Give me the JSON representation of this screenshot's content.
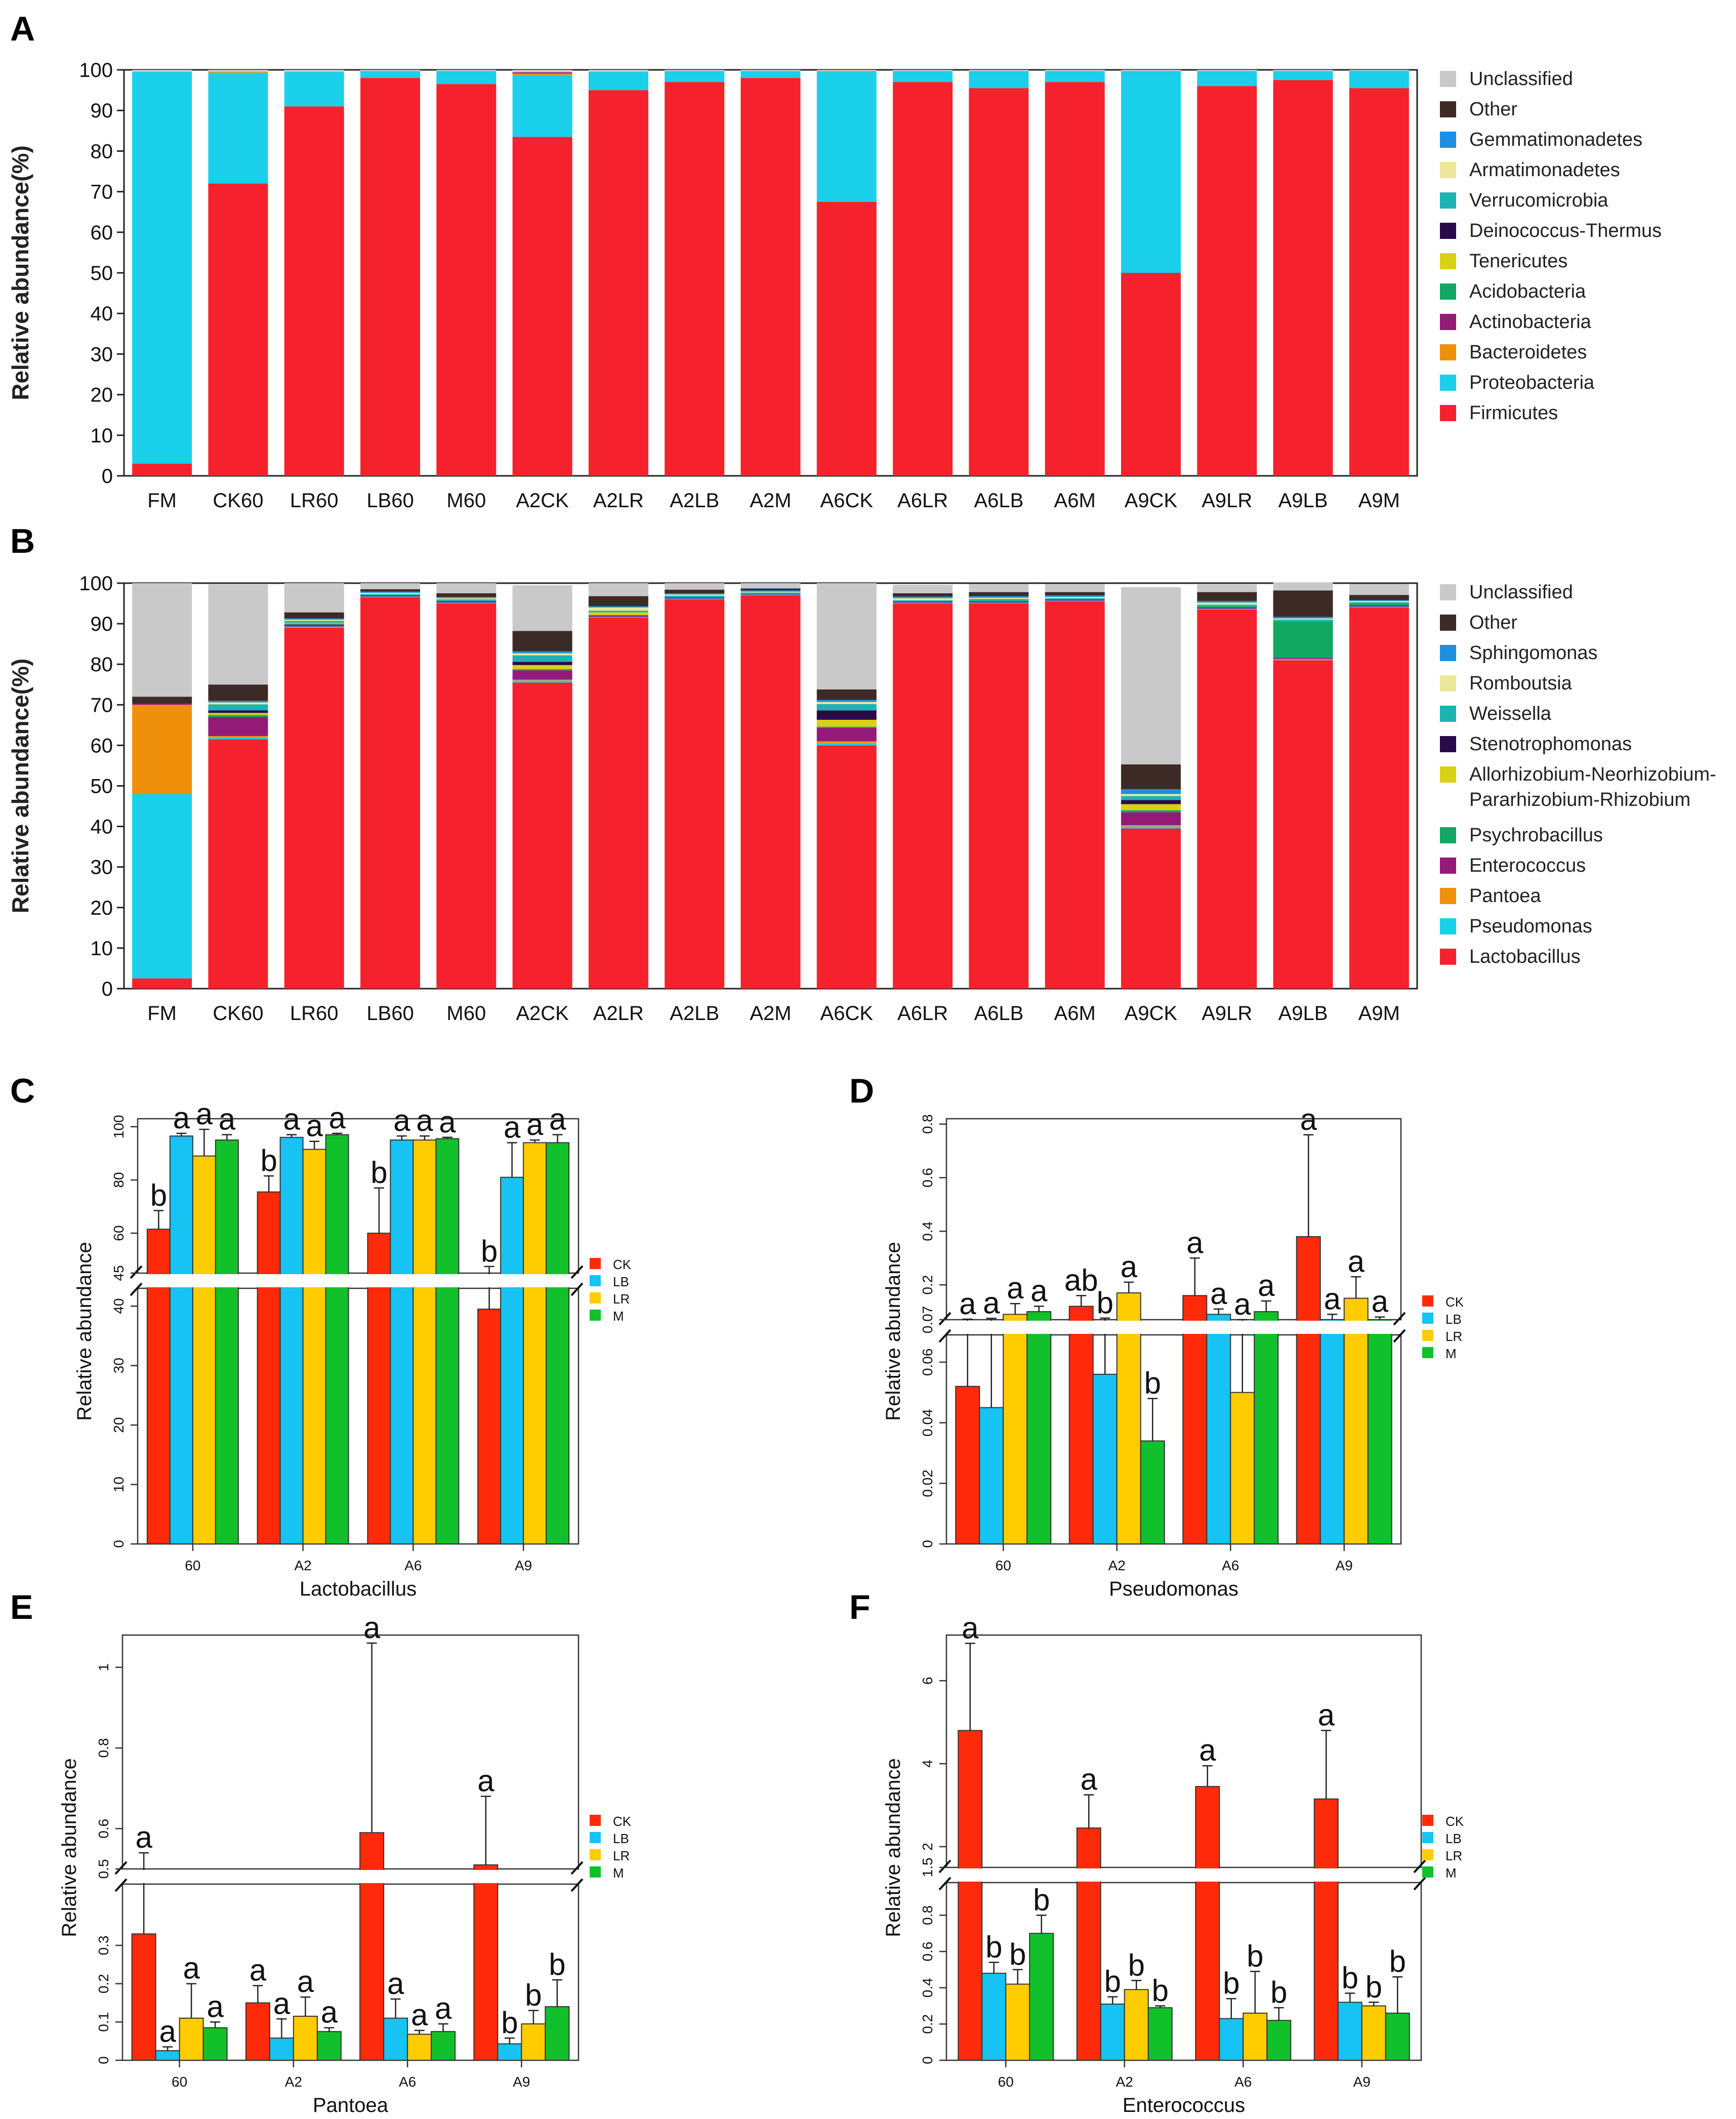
{
  "colors": {
    "Unclassified": "#c9c9c9",
    "Other": "#3b2a26",
    "Gemmatimonadetes": "#1c8fe0",
    "Armatimonadetes": "#ece79a",
    "Verrucomicrobia": "#1db3b3",
    "Deinococcus-Thermus": "#2a0a4a",
    "Tenericutes": "#d9d116",
    "Acidobacteria": "#12a864",
    "Actinobacteria": "#941a78",
    "Bacteroidetes": "#f0900a",
    "Proteobacteria": "#1ad0ea",
    "Firmicutes": "#f5222d",
    "Sphingomonas": "#1c8fe0",
    "Romboutsia": "#ece79a",
    "Weissella": "#1db3b3",
    "Stenotrophomonas": "#2a0a4a",
    "Allorhizobium": "#d9d116",
    "Psychrobacillus": "#12a864",
    "Enterococcus": "#941a78",
    "Pantoea": "#f0900a",
    "Pseudomonas": "#1ad0ea",
    "Lactobacillus": "#f5222d",
    "CK": "#ff2a0a",
    "LB": "#16c3f2",
    "LR": "#ffcc00",
    "M": "#11c02a"
  },
  "chart_data": [
    {
      "panel": "A",
      "type": "stacked-bar",
      "ylabel": "Relative abundance(%)",
      "ylim": [
        0,
        100
      ],
      "yticks": [
        "0",
        "10",
        "20",
        "30",
        "40",
        "50",
        "60",
        "70",
        "80",
        "90",
        "100"
      ],
      "categories": [
        "FM",
        "CK60",
        "LR60",
        "LB60",
        "M60",
        "A2CK",
        "A2LR",
        "A2LB",
        "A2M",
        "A6CK",
        "A6LR",
        "A6LB",
        "A6M",
        "A9CK",
        "A9LR",
        "A9LB",
        "A9M"
      ],
      "legend": [
        "Unclassified",
        "Other",
        "Gemmatimonadetes",
        "Armatimonadetes",
        "Verrucomicrobia",
        "Deinococcus-Thermus",
        "Tenericutes",
        "Acidobacteria",
        "Actinobacteria",
        "Bacteroidetes",
        "Proteobacteria",
        "Firmicutes"
      ],
      "series": [
        {
          "name": "Firmicutes",
          "values": [
            3,
            72,
            91,
            98,
            96.5,
            83.5,
            95,
            97,
            98,
            67.5,
            97,
            95.5,
            97,
            50,
            96,
            97.5,
            95.5
          ]
        },
        {
          "name": "Proteobacteria",
          "values": [
            96.5,
            27.3,
            8.5,
            1.7,
            3.2,
            15.2,
            4.5,
            2.7,
            1.7,
            32,
            2.7,
            4.2,
            2.7,
            49.7,
            3.7,
            2.2,
            4.3
          ]
        },
        {
          "name": "Bacteroidetes",
          "values": [
            0,
            0.2,
            0,
            0,
            0,
            0.4,
            0,
            0,
            0,
            0.2,
            0,
            0,
            0,
            0,
            0,
            0,
            0
          ]
        },
        {
          "name": "Actinobacteria",
          "values": [
            0,
            0,
            0,
            0,
            0,
            0.3,
            0,
            0,
            0,
            0,
            0,
            0,
            0,
            0,
            0,
            0,
            0
          ]
        },
        {
          "name": "Unclassified",
          "values": [
            0.5,
            0.5,
            0.5,
            0.3,
            0.3,
            0.6,
            0.5,
            0.3,
            0.3,
            0.3,
            0.3,
            0.3,
            0.3,
            0.3,
            0.3,
            0.3,
            0.2
          ]
        }
      ]
    },
    {
      "panel": "B",
      "type": "stacked-bar",
      "ylabel": "Relative abundance(%)",
      "ylim": [
        0,
        100
      ],
      "yticks": [
        "0",
        "10",
        "20",
        "30",
        "40",
        "50",
        "60",
        "70",
        "80",
        "90",
        "100"
      ],
      "categories": [
        "FM",
        "CK60",
        "LR60",
        "LB60",
        "M60",
        "A2CK",
        "A2LR",
        "A2LB",
        "A2M",
        "A6CK",
        "A6LR",
        "A6LB",
        "A6M",
        "A9CK",
        "A9LR",
        "A9LB",
        "A9M"
      ],
      "legend": [
        "Unclassified",
        "Other",
        "Sphingomonas",
        "Romboutsia",
        "Weissella",
        "Stenotrophomonas",
        "Allorhizobium-Neorhizobium-",
        "Psychrobacillus",
        "Enterococcus",
        "Pantoea",
        "Pseudomonas",
        "Lactobacillus"
      ],
      "legend_line2": "Pararhizobium-Rhizobium",
      "legend_keys": [
        "Unclassified",
        "Other",
        "Sphingomonas",
        "Romboutsia",
        "Weissella",
        "Stenotrophomonas",
        "Allorhizobium",
        "Psychrobacillus",
        "Enterococcus",
        "Pantoea",
        "Pseudomonas",
        "Lactobacillus"
      ],
      "series": [
        {
          "name": "Lactobacillus",
          "values": [
            2.5,
            61.5,
            89,
            96.5,
            95,
            75.5,
            91.5,
            96,
            97,
            60,
            95,
            95,
            95.5,
            39.5,
            93.5,
            81,
            94
          ]
        },
        {
          "name": "Pseudomonas",
          "values": [
            45.5,
            0.5,
            0.3,
            0.2,
            0.2,
            0.5,
            0.2,
            0.2,
            0.2,
            0.5,
            0.2,
            0.2,
            0.2,
            0.5,
            0.2,
            0.3,
            0.2
          ]
        },
        {
          "name": "Pantoea",
          "values": [
            22,
            0.3,
            0,
            0,
            0,
            0.2,
            0,
            0,
            0,
            0.5,
            0,
            0,
            0,
            0.3,
            0,
            0,
            0
          ]
        },
        {
          "name": "Enterococcus",
          "values": [
            0.3,
            4.7,
            0.5,
            0.3,
            0.4,
            2.3,
            0.4,
            0.3,
            0.2,
            3.3,
            0.3,
            0.3,
            0.3,
            3.2,
            0.3,
            0.3,
            0.3
          ]
        },
        {
          "name": "Psychrobacillus",
          "values": [
            0,
            0.5,
            0.2,
            0,
            0,
            0.3,
            0,
            0,
            0,
            0.3,
            0,
            0.2,
            0,
            0.5,
            0.3,
            9,
            0.5
          ]
        },
        {
          "name": "Allorhizobium",
          "values": [
            0,
            0.5,
            0.2,
            0,
            0,
            1,
            0.7,
            0,
            0,
            1.7,
            0,
            0,
            0,
            1.5,
            0,
            0,
            0
          ]
        },
        {
          "name": "Stenotrophomonas",
          "values": [
            0,
            0.6,
            0,
            0,
            0,
            0.8,
            0,
            0,
            0,
            2.3,
            0,
            0,
            0,
            1.0,
            0,
            0,
            0
          ]
        },
        {
          "name": "Weissella",
          "values": [
            0,
            1.5,
            0.5,
            0.3,
            0.4,
            1.6,
            0.4,
            0.4,
            0.3,
            1.6,
            0.3,
            0.4,
            0.3,
            1.0,
            0.4,
            0.4,
            0.3
          ]
        },
        {
          "name": "Romboutsia",
          "values": [
            0,
            0.5,
            0.3,
            0.3,
            0.3,
            0.5,
            0.8,
            0.3,
            0.2,
            0.5,
            0.5,
            0.3,
            0.3,
            0.5,
            0.5,
            0.3,
            0.3
          ]
        },
        {
          "name": "Sphingomonas",
          "values": [
            0,
            0.4,
            0.3,
            0.3,
            0.3,
            0.5,
            0.3,
            0.3,
            0.3,
            0.5,
            0.4,
            0.4,
            0.4,
            1.2,
            0.4,
            0.4,
            0.2
          ]
        },
        {
          "name": "Other",
          "values": [
            1.7,
            4,
            1.5,
            0.6,
            0.9,
            5,
            2.5,
            0.9,
            0.5,
            2.6,
            0.8,
            1,
            0.8,
            6.1,
            2.2,
            6.5,
            1.3
          ]
        },
        {
          "name": "Unclassified",
          "values": [
            28,
            24.7,
            7.2,
            1.5,
            2.5,
            11.3,
            3.2,
            1.6,
            1.3,
            26.2,
            2.1,
            2,
            2,
            43.7,
            1.9,
            2,
            2.7
          ]
        }
      ]
    },
    {
      "panel": "C",
      "type": "bar",
      "title": "",
      "xlabel": "Lactobacillus",
      "ylabel": "Relative abundance",
      "groups": [
        "60",
        "A2",
        "A6",
        "A9"
      ],
      "series_names": [
        "CK",
        "LB",
        "LR",
        "M"
      ],
      "lower_ticks": [
        "0",
        "10",
        "20",
        "30",
        "40"
      ],
      "upper_ticks": [
        "45",
        "60",
        "80",
        "100"
      ],
      "values": [
        [
          61.5,
          96.5,
          89,
          95
        ],
        [
          75.5,
          96,
          91.5,
          97
        ],
        [
          60,
          95,
          95,
          95.5
        ],
        [
          39.5,
          81,
          94,
          94
        ]
      ],
      "errors": [
        [
          7,
          1,
          10,
          2
        ],
        [
          6,
          1,
          3,
          0.5
        ],
        [
          17,
          1.5,
          1.5,
          0.5
        ],
        [
          8,
          13,
          1,
          3
        ]
      ],
      "letters": [
        [
          "b",
          "a",
          "a",
          "a"
        ],
        [
          "b",
          "a",
          "a",
          "a"
        ],
        [
          "b",
          "a",
          "a",
          "a"
        ],
        [
          "b",
          "a",
          "a",
          "a"
        ]
      ],
      "break": {
        "lower_max": 43,
        "upper_min": 45,
        "upper_max": 103
      }
    },
    {
      "panel": "D",
      "type": "bar",
      "xlabel": "Pseudomonas",
      "ylabel": "Relative abundance",
      "groups": [
        "60",
        "A2",
        "A6",
        "A9"
      ],
      "series_names": [
        "CK",
        "LB",
        "LR",
        "M"
      ],
      "lower_ticks": [
        "0",
        "0.02",
        "0.04",
        "0.06"
      ],
      "upper_ticks": [
        "0.07",
        "0.2",
        "0.4",
        "0.6",
        "0.8"
      ],
      "values": [
        [
          0.052,
          0.045,
          0.09,
          0.1
        ],
        [
          0.12,
          0.056,
          0.17,
          0.034
        ],
        [
          0.16,
          0.09,
          0.05,
          0.1
        ],
        [
          0.38,
          0.07,
          0.15,
          0.07
        ]
      ],
      "errors": [
        [
          0.02,
          0.03,
          0.04,
          0.02
        ],
        [
          0.04,
          0.02,
          0.04,
          0.014
        ],
        [
          0.14,
          0.02,
          0.02,
          0.04
        ],
        [
          0.38,
          0.02,
          0.08,
          0.01
        ]
      ],
      "letters": [
        [
          "a",
          "a",
          "a",
          "a"
        ],
        [
          "ab",
          "b",
          "a",
          "b"
        ],
        [
          "a",
          "a",
          "a",
          "a"
        ],
        [
          "a",
          "a",
          "a",
          "a"
        ]
      ],
      "break": {
        "lower_max": 0.069,
        "upper_min": 0.07,
        "upper_max": 0.82
      }
    },
    {
      "panel": "E",
      "type": "bar",
      "xlabel": "Pantoea",
      "ylabel": "Relative abundance",
      "groups": [
        "60",
        "A2",
        "A6",
        "A9"
      ],
      "series_names": [
        "CK",
        "LB",
        "LR",
        "M"
      ],
      "lower_ticks": [
        "0",
        "0.1",
        "0.2",
        "0.3"
      ],
      "upper_ticks": [
        "0.5",
        "0.6",
        "0.8",
        "1"
      ],
      "values": [
        [
          0.33,
          0.025,
          0.11,
          0.085
        ],
        [
          0.15,
          0.058,
          0.115,
          0.075
        ],
        [
          0.59,
          0.11,
          0.068,
          0.075
        ],
        [
          0.51,
          0.043,
          0.095,
          0.14
        ]
      ],
      "errors": [
        [
          0.21,
          0.01,
          0.09,
          0.015
        ],
        [
          0.045,
          0.05,
          0.05,
          0.01
        ],
        [
          0.47,
          0.05,
          0.01,
          0.02
        ],
        [
          0.17,
          0.015,
          0.035,
          0.07
        ]
      ],
      "letters": [
        [
          "a",
          "a",
          "a",
          "a"
        ],
        [
          "a",
          "a",
          "a",
          "a"
        ],
        [
          "a",
          "a",
          "a",
          "a"
        ],
        [
          "a",
          "b",
          "b",
          "b"
        ]
      ],
      "break": {
        "lower_max": 0.46,
        "upper_min": 0.5,
        "upper_max": 1.08
      }
    },
    {
      "panel": "F",
      "type": "bar",
      "xlabel": "Enterococcus",
      "ylabel": "Relative abundance",
      "groups": [
        "60",
        "A2",
        "A6",
        "A9"
      ],
      "series_names": [
        "CK",
        "LB",
        "LR",
        "M"
      ],
      "lower_ticks": [
        "0",
        "0.2",
        "0.4",
        "0.6",
        "0.8"
      ],
      "upper_ticks": [
        "1.5",
        "2",
        "4",
        "6"
      ],
      "values": [
        [
          4.8,
          0.48,
          0.42,
          0.7
        ],
        [
          2.45,
          0.31,
          0.39,
          0.29
        ],
        [
          3.45,
          0.23,
          0.26,
          0.22
        ],
        [
          3.15,
          0.32,
          0.3,
          0.26
        ]
      ],
      "errors": [
        [
          2.1,
          0.06,
          0.08,
          0.1
        ],
        [
          0.8,
          0.04,
          0.05,
          0.01
        ],
        [
          0.5,
          0.11,
          0.23,
          0.07
        ],
        [
          1.65,
          0.05,
          0.02,
          0.2
        ]
      ],
      "letters": [
        [
          "a",
          "b",
          "b",
          "b"
        ],
        [
          "a",
          "b",
          "b",
          "b"
        ],
        [
          "a",
          "b",
          "b",
          "b"
        ],
        [
          "a",
          "b",
          "b",
          "b"
        ]
      ],
      "break": {
        "lower_max": 0.98,
        "upper_min": 1.5,
        "upper_max": 7.1
      }
    }
  ]
}
